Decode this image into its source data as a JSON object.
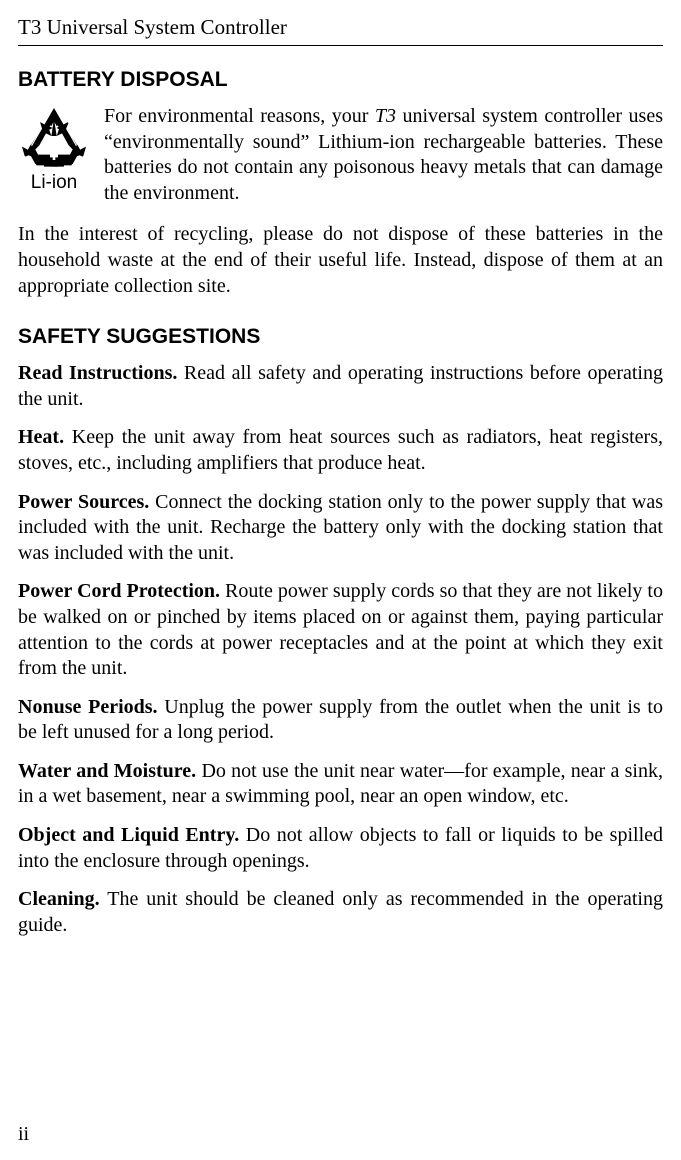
{
  "header": {
    "title": "T3 Universal System Controller"
  },
  "battery": {
    "section_title": "BATTERY DISPOSAL",
    "icon_label": "Li-ion",
    "para1_pre": "For environmental reasons, your ",
    "para1_italic": "T3",
    "para1_post": " universal system controller uses “environmentally sound” Lithium-ion rechargeable batteries. These batteries do not contain any poisonous heavy metals that can damage the environment.",
    "para2": "In the interest of recycling, please do not dispose of these batteries in the household waste at the end of their useful life. Instead, dispose of them at an appropriate collection site."
  },
  "safety": {
    "section_title": "SAFETY SUGGESTIONS",
    "items": [
      {
        "label": "Read Instructions.",
        "text": " Read all safety and operating instructions before operating the unit."
      },
      {
        "label": "Heat.",
        "text": " Keep the unit away from heat sources such as radiators, heat registers, stoves, etc., including amplifiers that produce heat."
      },
      {
        "label": "Power Sources.",
        "text": " Connect the docking station only to the power supply that was included with the unit. Recharge the battery only with the docking station that was included with the unit."
      },
      {
        "label": "Power Cord Protection.",
        "text": " Route power supply cords so that they are not likely to be walked on or pinched by items placed on or against them, paying particular attention to the cords at power receptacles and at the point at which they exit from the unit."
      },
      {
        "label": "Nonuse Periods.",
        "text": " Unplug the power supply from the outlet when the unit is to be left unused for a long period."
      },
      {
        "label": "Water and Moisture.",
        "text": " Do not use the unit near water—for example, near a sink, in a wet basement, near a swimming pool, near an open window, etc."
      },
      {
        "label": "Object and Liquid Entry.",
        "text": " Do not allow objects to fall or liquids to be spilled into the enclosure through openings."
      },
      {
        "label": "Cleaning.",
        "text": " The unit should be cleaned only as recommended in the operating guide."
      }
    ]
  },
  "page_number": "ii",
  "colors": {
    "background": "#ffffff",
    "text": "#000000",
    "rule": "#000000",
    "icon_fill": "#000000"
  },
  "typography": {
    "header_fontsize": 21,
    "section_title_fontsize": 21,
    "body_fontsize": 20,
    "body_font": "Palatino",
    "title_font": "Arial"
  }
}
